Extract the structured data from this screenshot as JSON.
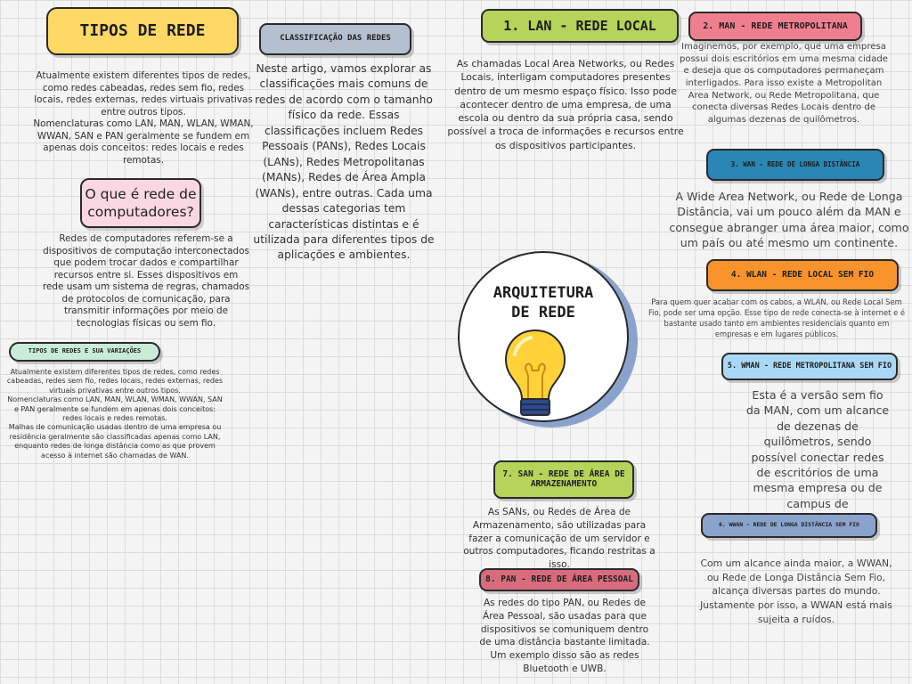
{
  "colors": {
    "yellow": "#ffd966",
    "gray": "#b4bfd0",
    "lime": "#b6d35a",
    "pink": "#ef7f8f",
    "teal": "#2a86b4",
    "orange": "#f7932a",
    "lightblue": "#a9d8f7",
    "slate": "#8aa3cc",
    "green": "#b6d35a",
    "rose": "#d86c7c",
    "mint": "#c9ecd8",
    "lightpink": "#fbd7e4"
  },
  "tipos_de_rede": {
    "title": "TIPOS DE REDE",
    "text": "Atualmente existem diferentes tipos de redes, como redes cabeadas, redes sem fio, redes locais, redes externas, redes virtuais privativas entre outros tipos.\nNomenclaturas como LAN, MAN, WLAN, WMAN, WWAN, SAN e PAN geralmente se fundem em apenas dois conceitos: redes locais e redes remotas."
  },
  "o_que_e": {
    "title": "O que é rede de computadores?",
    "text": "Redes de computadores referem-se a dispositivos de computação interconectados que podem trocar dados e compartilhar recursos entre si. Esses dispositivos em rede usam um sistema de regras, chamados de protocolos de comunicação, para transmitir informações por meio de tecnologias físicas ou sem fio."
  },
  "variacoes": {
    "title": "Tipos de redes e sua variações",
    "text": "Atualmente existem diferentes tipos de redes, como redes cabeadas, redes sem fio, redes locais, redes externas, redes virtuais privativas entre outros tipos.\nNomenclaturas como LAN, MAN, WLAN, WMAN, WWAN, SAN e PAN geralmente se fundem em apenas dois conceitos: redes locais e redes remotas.\nMalhas de comunicação usadas dentro de uma empresa ou residência geralmente são classificadas apenas como LAN, enquanto redes de longa distância como as que provem acesso à internet são chamadas de WAN."
  },
  "classificacao": {
    "title": "Classificação das redes",
    "text": "Neste artigo, vamos explorar as classificações mais comuns de redes de acordo com o tamanho físico da rede. Essas classificações incluem Redes Pessoais (PANs), Redes Locais (LANs), Redes Metropolitanas (MANs), Redes de Área Ampla (WANs), entre outras. Cada uma dessas categorias tem características distintas e é utilizada para diferentes tipos de aplicações e ambientes."
  },
  "center": {
    "title_line1": "ARQUITETURA",
    "title_line2": "DE REDE",
    "icon": "lightbulb-icon"
  },
  "lan": {
    "title": "1. LAN - REDE LOCAL",
    "text": "As chamadas Local Area Networks, ou Redes Locais, interligam computadores presentes dentro de um mesmo espaço físico. Isso pode acontecer dentro de uma empresa, de uma escola ou dentro da sua própria casa, sendo possível a troca de informações e recursos entre os dispositivos participantes."
  },
  "man": {
    "title": "2. MAN - REDE METROPOLITANA",
    "text": "Imaginemos, por exemplo, que uma empresa possui dois escritórios em uma mesma cidade e deseja que os computadores permaneçam interligados. Para isso existe a Metropolitan Area Network, ou Rede Metropolitana, que conecta diversas Redes Locais dentro de algumas dezenas de quilômetros."
  },
  "wan": {
    "title": "3. WAN - REDE DE LONGA DISTÂNCIA",
    "text": "A Wide Area Network, ou Rede de Longa Distância, vai um pouco além da MAN e consegue abranger uma área maior, como um país ou até mesmo um continente."
  },
  "wlan": {
    "title": "4. WLAN - REDE LOCAL SEM FIO",
    "text": "Para quem quer acabar com os cabos, a WLAN, ou Rede Local Sem Fio, pode ser uma opção. Esse tipo de rede conecta-se à internet e é bastante usado tanto em ambientes residenciais quanto em empresas e em lugares públicos."
  },
  "wman": {
    "title": "5. WMAN - REDE METROPOLITANA SEM FIO",
    "text": "Esta é a versão sem fio da MAN, com um alcance de dezenas de quilômetros, sendo possível conectar redes de escritórios de uma mesma empresa ou de campus de universidades."
  },
  "wwan": {
    "title": "6. WWAN - REDE DE LONGA DISTÂNCIA SEM FIO",
    "text": "Com um alcance ainda maior, a WWAN, ou Rede de Longa Distância Sem Fio, alcança diversas partes do mundo. Justamente por isso, a WWAN está mais sujeita a ruídos."
  },
  "san": {
    "title": "7. SAN - REDE DE ÁREA DE ARMAZENAMENTO",
    "text": "As SANs, ou Redes de Área de Armazenamento, são utilizadas para fazer a comunicação de um servidor e outros computadores, ficando restritas a isso."
  },
  "pan": {
    "title": "8. PAN - REDE DE ÁREA PESSOAL",
    "text": "As redes do tipo PAN, ou Redes de Área Pessoal, são usadas para que dispositivos se comuniquem dentro de uma distância bastante limitada. Um exemplo disso são as redes Bluetooth e UWB."
  }
}
